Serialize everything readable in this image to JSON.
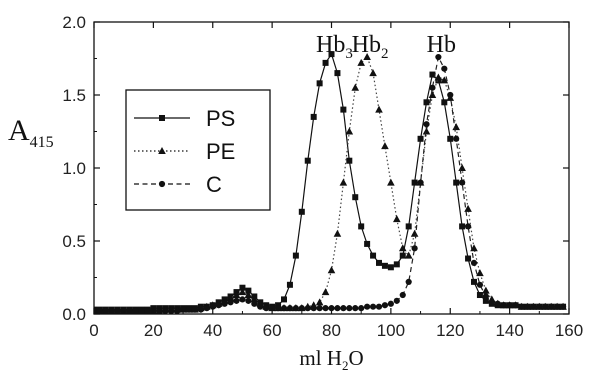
{
  "chart_data": {
    "type": "line",
    "ylabel_main": "A",
    "ylabel_sub": "415",
    "xlabel_main": "ml H",
    "xlabel_sub": "2",
    "xlabel_end": "O",
    "xlim": [
      0,
      160
    ],
    "ylim": [
      0,
      2.0
    ],
    "x_ticks": [
      0,
      20,
      40,
      60,
      80,
      100,
      120,
      140,
      160
    ],
    "x_tick_labels": [
      "0",
      "20",
      "40",
      "60",
      "80",
      "100",
      "120",
      "140",
      "160"
    ],
    "y_ticks": [
      0,
      0.5,
      1.0,
      1.5,
      2.0
    ],
    "y_tick_labels": [
      "0.0",
      "0.5",
      "1.0",
      "1.5",
      "2.0"
    ],
    "grid": false,
    "legend_position": "left",
    "annotations": [
      {
        "main": "Hb",
        "sub": "3",
        "x": 81
      },
      {
        "main": "Hb",
        "sub": "2",
        "x": 93
      },
      {
        "main": "Hb",
        "sub": "",
        "x": 117
      }
    ],
    "series": [
      {
        "name": "PS",
        "marker": "square",
        "dash": "solid",
        "x": [
          0,
          2,
          4,
          6,
          8,
          10,
          12,
          14,
          16,
          18,
          20,
          22,
          24,
          26,
          28,
          30,
          32,
          34,
          36,
          38,
          40,
          42,
          44,
          46,
          48,
          50,
          52,
          54,
          56,
          58,
          60,
          62,
          64,
          66,
          68,
          70,
          72,
          74,
          76,
          78,
          80,
          82,
          84,
          86,
          88,
          90,
          92,
          94,
          96,
          98,
          100,
          102,
          104,
          106,
          108,
          110,
          112,
          114,
          116,
          118,
          120,
          122,
          124,
          126,
          128,
          130,
          132,
          134,
          136,
          138,
          140,
          142,
          144,
          146,
          148,
          150,
          152,
          154,
          156,
          158
        ],
        "y": [
          0.03,
          0.03,
          0.03,
          0.03,
          0.03,
          0.03,
          0.03,
          0.03,
          0.03,
          0.03,
          0.04,
          0.04,
          0.04,
          0.04,
          0.04,
          0.04,
          0.04,
          0.04,
          0.05,
          0.05,
          0.06,
          0.08,
          0.1,
          0.12,
          0.15,
          0.18,
          0.16,
          0.12,
          0.08,
          0.06,
          0.05,
          0.06,
          0.1,
          0.2,
          0.4,
          0.7,
          1.05,
          1.35,
          1.58,
          1.72,
          1.78,
          1.65,
          1.4,
          1.05,
          0.8,
          0.6,
          0.48,
          0.4,
          0.35,
          0.33,
          0.32,
          0.34,
          0.4,
          0.6,
          0.9,
          1.2,
          1.45,
          1.64,
          1.6,
          1.45,
          1.2,
          0.9,
          0.6,
          0.38,
          0.22,
          0.13,
          0.09,
          0.07,
          0.06,
          0.06,
          0.06,
          0.06,
          0.05,
          0.05,
          0.05,
          0.05,
          0.05,
          0.05,
          0.05,
          0.05
        ]
      },
      {
        "name": "PE",
        "marker": "triangle",
        "dash": "dotted",
        "x": [
          0,
          2,
          4,
          6,
          8,
          10,
          12,
          14,
          16,
          18,
          20,
          22,
          24,
          26,
          28,
          30,
          32,
          34,
          36,
          38,
          40,
          42,
          44,
          46,
          48,
          50,
          52,
          54,
          56,
          58,
          60,
          62,
          64,
          66,
          68,
          70,
          72,
          74,
          76,
          78,
          80,
          82,
          84,
          86,
          88,
          90,
          92,
          94,
          96,
          98,
          100,
          102,
          104,
          106,
          108,
          110,
          112,
          114,
          116,
          118,
          120,
          122,
          124,
          126,
          128,
          130,
          132,
          134,
          136,
          138,
          140,
          142,
          144,
          146,
          148,
          150,
          152,
          154,
          156,
          158
        ],
        "y": [
          0.02,
          0.02,
          0.02,
          0.02,
          0.02,
          0.02,
          0.02,
          0.02,
          0.02,
          0.02,
          0.02,
          0.02,
          0.03,
          0.03,
          0.03,
          0.03,
          0.03,
          0.03,
          0.04,
          0.05,
          0.06,
          0.07,
          0.09,
          0.11,
          0.13,
          0.15,
          0.13,
          0.1,
          0.07,
          0.05,
          0.04,
          0.04,
          0.04,
          0.04,
          0.04,
          0.04,
          0.05,
          0.06,
          0.08,
          0.15,
          0.3,
          0.55,
          0.9,
          1.25,
          1.55,
          1.72,
          1.76,
          1.65,
          1.4,
          1.15,
          0.9,
          0.65,
          0.45,
          0.4,
          0.55,
          0.9,
          1.25,
          1.5,
          1.62,
          1.6,
          1.48,
          1.28,
          1.0,
          0.72,
          0.45,
          0.28,
          0.16,
          0.1,
          0.07,
          0.06,
          0.06,
          0.06,
          0.05,
          0.05,
          0.05,
          0.05,
          0.05,
          0.05,
          0.05,
          0.05
        ]
      },
      {
        "name": "C",
        "marker": "circle",
        "dash": "dashed",
        "x": [
          0,
          2,
          4,
          6,
          8,
          10,
          12,
          14,
          16,
          18,
          20,
          22,
          24,
          26,
          28,
          30,
          32,
          34,
          36,
          38,
          40,
          42,
          44,
          46,
          48,
          50,
          52,
          54,
          56,
          58,
          60,
          62,
          64,
          66,
          68,
          70,
          72,
          74,
          76,
          78,
          80,
          82,
          84,
          86,
          88,
          90,
          92,
          94,
          96,
          98,
          100,
          102,
          104,
          106,
          108,
          110,
          112,
          114,
          116,
          118,
          120,
          122,
          124,
          126,
          128,
          130,
          132,
          134,
          136,
          138,
          140,
          142,
          144,
          146,
          148,
          150,
          152,
          154,
          156,
          158
        ],
        "y": [
          0.02,
          0.02,
          0.02,
          0.02,
          0.02,
          0.02,
          0.02,
          0.02,
          0.02,
          0.02,
          0.02,
          0.02,
          0.02,
          0.02,
          0.02,
          0.03,
          0.03,
          0.03,
          0.03,
          0.04,
          0.05,
          0.06,
          0.07,
          0.08,
          0.09,
          0.1,
          0.09,
          0.07,
          0.05,
          0.04,
          0.04,
          0.04,
          0.04,
          0.04,
          0.04,
          0.04,
          0.04,
          0.04,
          0.04,
          0.04,
          0.04,
          0.04,
          0.04,
          0.04,
          0.04,
          0.04,
          0.05,
          0.05,
          0.05,
          0.06,
          0.07,
          0.09,
          0.13,
          0.22,
          0.45,
          0.9,
          1.3,
          1.55,
          1.76,
          1.68,
          1.5,
          1.2,
          0.9,
          0.6,
          0.35,
          0.2,
          0.12,
          0.08,
          0.07,
          0.06,
          0.06,
          0.06,
          0.05,
          0.05,
          0.05,
          0.05,
          0.05,
          0.05,
          0.05,
          0.05
        ]
      }
    ]
  }
}
